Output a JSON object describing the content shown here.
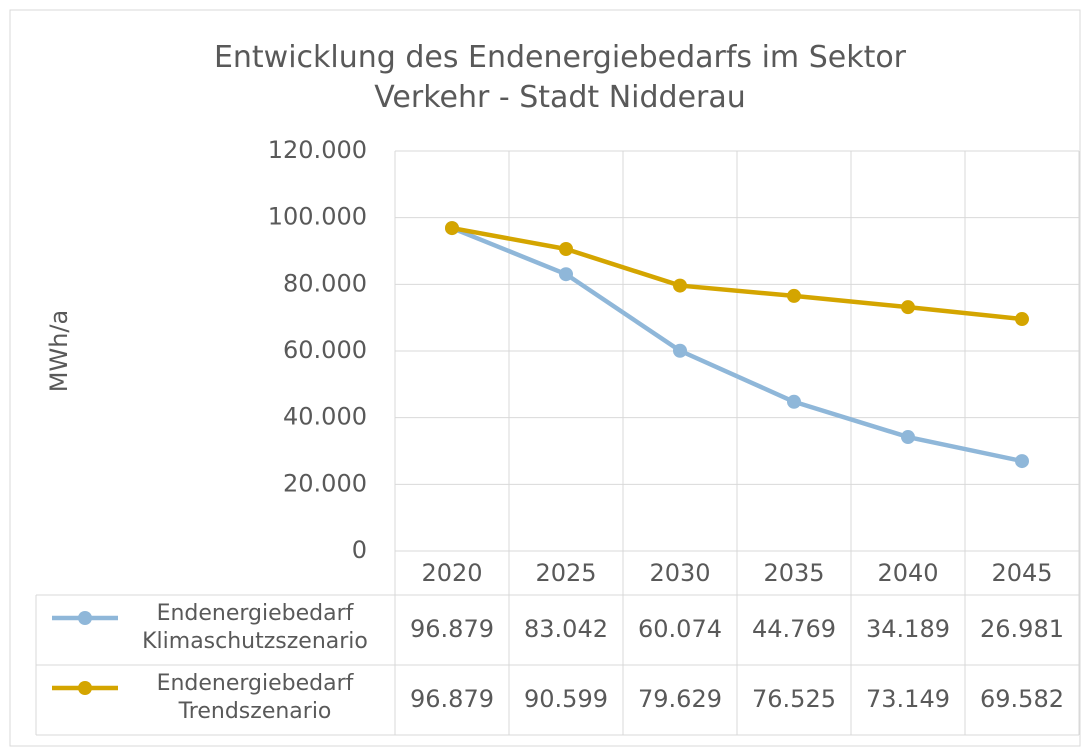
{
  "chart_data": {
    "type": "line",
    "title": "Entwicklung des Endenergiebedarfs im Sektor Verkehr - Stadt Nidderau",
    "y_label": "MWh/a",
    "categories": [
      "2020",
      "2025",
      "2030",
      "2035",
      "2040",
      "2045"
    ],
    "series": [
      {
        "name": "Endenergiebedarf Klimaschutzszenario",
        "color": "#8fb7d9",
        "values": [
          96879,
          83042,
          60074,
          44769,
          34189,
          26981
        ],
        "value_labels": [
          "96.879",
          "83.042",
          "60.074",
          "44.769",
          "34.189",
          "26.981"
        ]
      },
      {
        "name": "Endenergiebedarf Trendszenario",
        "color": "#d4a500",
        "values": [
          96879,
          90599,
          79629,
          76525,
          73149,
          69582
        ],
        "value_labels": [
          "96.879",
          "90.599",
          "79.629",
          "76.525",
          "73.149",
          "69.582"
        ]
      }
    ],
    "ylim": [
      0,
      120000
    ],
    "yticks": [
      0,
      {
        "value": 20000,
        "label": "20.000"
      },
      {
        "value": 40000,
        "label": "40.000"
      },
      {
        "value": 60000,
        "label": "60.000"
      },
      {
        "value": 80000,
        "label": "80.000"
      },
      {
        "value": 100000,
        "label": "100.000"
      },
      {
        "value": 120000,
        "label": "120.000"
      }
    ],
    "grid": true
  }
}
